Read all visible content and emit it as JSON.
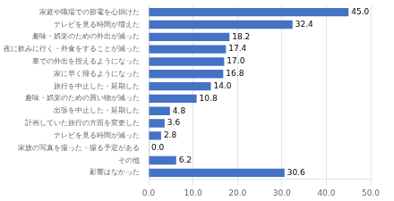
{
  "chart_data": {
    "type": "bar",
    "orientation": "horizontal",
    "categories": [
      "家庭や職場での節電を心掛けた",
      "テレビを見る時間が増えた",
      "趣味・娯楽のための外出が減った",
      "夜に飲みに行く・外食をすることが減った",
      "車での外出を控えるようになった",
      "家に早く帰るようになった",
      "旅行を中止した・延期した",
      "趣味・娯楽のための買い物が減った",
      "出張を中止した・延期した",
      "計画していた旅行の方面を変更した",
      "テレビを見る時間が減った",
      "家族の写真を撮った・撮る予定がある",
      "その他",
      "影響はなかった"
    ],
    "values": [
      45.0,
      32.4,
      18.2,
      17.4,
      17.0,
      16.8,
      14.0,
      10.8,
      4.8,
      3.6,
      2.8,
      0.0,
      6.2,
      30.6
    ],
    "value_labels": [
      "45.0",
      "32.4",
      "18.2",
      "17.4",
      "17.0",
      "16.8",
      "14.0",
      "10.8",
      "4.8",
      "3.6",
      "2.8",
      "0.0",
      "6.2",
      "30.6"
    ],
    "color": "#4472c4",
    "xlim": [
      0,
      50
    ],
    "xticks": [
      {
        "value": 0,
        "label": "0.0"
      },
      {
        "value": 10,
        "label": "10.0"
      },
      {
        "value": 20,
        "label": "20.0"
      },
      {
        "value": 30,
        "label": "30.0"
      },
      {
        "value": 40,
        "label": "40.0"
      },
      {
        "value": 50,
        "label": "50.0"
      }
    ],
    "grid": true,
    "data_labels": true
  }
}
